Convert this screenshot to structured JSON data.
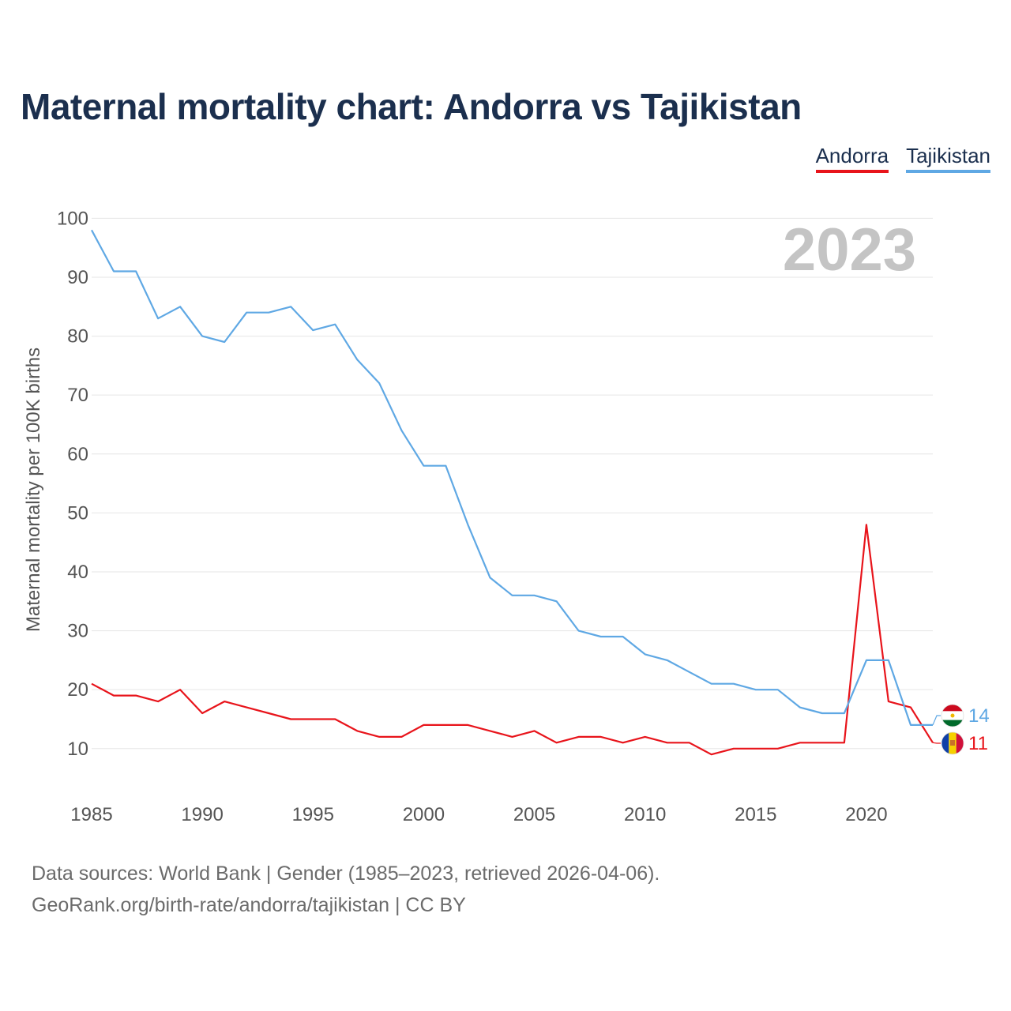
{
  "title": "Maternal mortality chart: Andorra vs Tajikistan",
  "footer": {
    "line1": "Data sources: World Bank | Gender (1985–2023, retrieved 2026-04-06).",
    "line2": "GeoRank.org/birth-rate/andorra/tajikistan | CC BY"
  },
  "chart_data": {
    "type": "line",
    "title": "Maternal mortality chart: Andorra vs Tajikistan",
    "ylabel": "Maternal mortality per 100K births",
    "xlabel": "",
    "year_label": "2023",
    "xlim": [
      1985,
      2023
    ],
    "ylim": [
      3,
      103
    ],
    "x_ticks": [
      1985,
      1990,
      1995,
      2000,
      2005,
      2010,
      2015,
      2020
    ],
    "y_ticks": [
      10,
      20,
      30,
      40,
      50,
      60,
      70,
      80,
      90,
      100
    ],
    "x": [
      1985,
      1986,
      1987,
      1988,
      1989,
      1990,
      1991,
      1992,
      1993,
      1994,
      1995,
      1996,
      1997,
      1998,
      1999,
      2000,
      2001,
      2002,
      2003,
      2004,
      2005,
      2006,
      2007,
      2008,
      2009,
      2010,
      2011,
      2012,
      2013,
      2014,
      2015,
      2016,
      2017,
      2018,
      2019,
      2020,
      2021,
      2022,
      2023
    ],
    "series": [
      {
        "name": "Andorra",
        "color": "#e8141b",
        "end_label": "11",
        "values": [
          21,
          19,
          19,
          18,
          20,
          16,
          18,
          17,
          16,
          15,
          15,
          15,
          13,
          12,
          12,
          14,
          14,
          14,
          13,
          12,
          13,
          11,
          12,
          12,
          11,
          12,
          11,
          11,
          9,
          10,
          10,
          10,
          11,
          11,
          11,
          48,
          18,
          17,
          11
        ]
      },
      {
        "name": "Tajikistan",
        "color": "#5fa8e4",
        "end_label": "14",
        "values": [
          98,
          91,
          91,
          83,
          85,
          80,
          79,
          84,
          84,
          85,
          81,
          82,
          76,
          72,
          64,
          58,
          58,
          48,
          39,
          36,
          36,
          35,
          30,
          29,
          29,
          26,
          25,
          23,
          21,
          21,
          20,
          20,
          17,
          16,
          16,
          25,
          25,
          14,
          14
        ]
      }
    ],
    "legend_position": "top-right",
    "grid": true
  }
}
